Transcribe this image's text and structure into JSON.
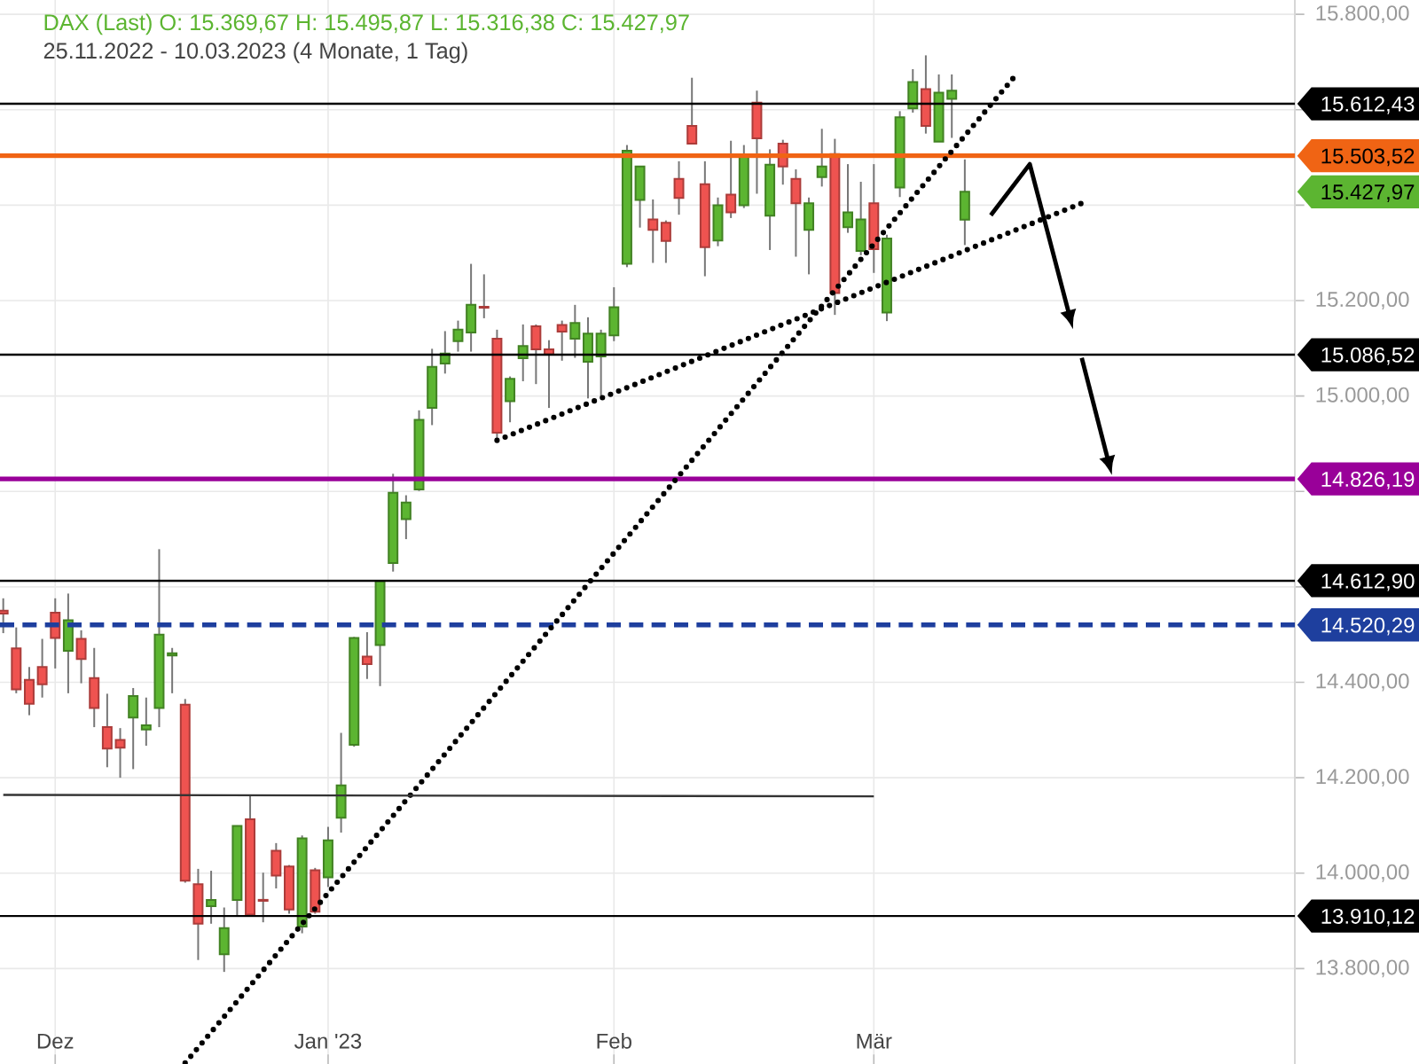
{
  "chart_data": {
    "type": "candlestick",
    "title": "DAX (Last) O: 15.369,67 H: 15.495,87 L: 15.316,38 C: 15.427,97",
    "subtitle": "25.11.2022 - 10.03.2023 (4 Monate, 1 Tag)",
    "categories": [
      null,
      null,
      null,
      null,
      "Dez",
      null,
      null,
      null,
      null,
      null,
      null,
      null,
      null,
      null,
      null,
      null,
      null,
      null,
      null,
      null,
      null,
      null,
      null,
      null,
      null,
      "Jan '23",
      null,
      null,
      null,
      null,
      null,
      null,
      null,
      null,
      null,
      null,
      null,
      null,
      null,
      null,
      null,
      null,
      null,
      null,
      null,
      null,
      null,
      "Feb",
      null,
      null,
      null,
      null,
      null,
      null,
      null,
      null,
      null,
      null,
      null,
      null,
      null,
      null,
      null,
      null,
      null,
      null,
      null,
      "Mär",
      null,
      null,
      null,
      null,
      null,
      null,
      null,
      null,
      null,
      null,
      null,
      null,
      null,
      null,
      null,
      null,
      null,
      null,
      null,
      null,
      null,
      null,
      null,
      null,
      null,
      null,
      null,
      null,
      null,
      null,
      null,
      null
    ],
    "ohlc": [
      [
        14550,
        14576,
        14503,
        14544
      ],
      [
        14471,
        14515,
        14377,
        14385
      ],
      [
        14405,
        14432,
        14331,
        14355
      ],
      [
        14432,
        14491,
        14368,
        14396
      ],
      [
        14546,
        14576,
        14429,
        14493
      ],
      [
        14466,
        14586,
        14377,
        14530
      ],
      [
        14491,
        14509,
        14398,
        14449
      ],
      [
        14409,
        14472,
        14306,
        14346
      ],
      [
        14306,
        14376,
        14222,
        14261
      ],
      [
        14279,
        14304,
        14200,
        14263
      ],
      [
        14326,
        14388,
        14218,
        14371
      ],
      [
        14301,
        14368,
        14267,
        14310
      ],
      [
        14346,
        14679,
        14306,
        14500
      ],
      [
        14456,
        14472,
        14377,
        14461
      ],
      [
        14353,
        14365,
        13980,
        13984
      ],
      [
        13977,
        14009,
        13818,
        13894
      ],
      [
        13931,
        14005,
        13894,
        13944
      ],
      [
        13830,
        13928,
        13793,
        13885
      ],
      [
        13944,
        14100,
        13912,
        14099
      ],
      [
        14113,
        14164,
        13910,
        13913
      ],
      [
        13944,
        14001,
        13897,
        13942
      ],
      [
        14047,
        14063,
        13968,
        13995
      ],
      [
        14014,
        14017,
        13915,
        13924
      ],
      [
        13888,
        14079,
        13874,
        14073
      ],
      [
        14006,
        14011,
        13915,
        13919
      ],
      [
        13991,
        14097,
        13971,
        14069
      ],
      [
        14116,
        14294,
        14085,
        14184
      ],
      [
        14269,
        14495,
        14265,
        14493
      ],
      [
        14454,
        14505,
        14407,
        14438
      ],
      [
        14478,
        14613,
        14392,
        14612
      ],
      [
        14650,
        14837,
        14632,
        14797
      ],
      [
        14742,
        14792,
        14700,
        14777
      ],
      [
        14804,
        14970,
        14801,
        14950
      ],
      [
        14975,
        15099,
        14939,
        15061
      ],
      [
        15068,
        15136,
        15047,
        15089
      ],
      [
        15115,
        15158,
        15093,
        15139
      ],
      [
        15133,
        15277,
        15093,
        15191
      ],
      [
        15187,
        15255,
        15163,
        15185
      ],
      [
        15120,
        15139,
        14908,
        14923
      ],
      [
        14989,
        15041,
        14945,
        15036
      ],
      [
        15079,
        15150,
        15031,
        15105
      ],
      [
        15146,
        15150,
        15025,
        15098
      ],
      [
        15098,
        15117,
        14975,
        15087
      ],
      [
        15149,
        15158,
        15074,
        15135
      ],
      [
        15120,
        15191,
        15080,
        15153
      ],
      [
        15072,
        15165,
        14995,
        15131
      ],
      [
        15083,
        15139,
        15000,
        15131
      ],
      [
        15127,
        15228,
        15115,
        15186
      ],
      [
        15277,
        15526,
        15270,
        15514
      ],
      [
        15411,
        15481,
        15353,
        15481
      ],
      [
        15370,
        15412,
        15279,
        15348
      ],
      [
        15363,
        15368,
        15279,
        15325
      ],
      [
        15455,
        15492,
        15380,
        15415
      ],
      [
        15566,
        15667,
        15529,
        15529
      ],
      [
        15444,
        15492,
        15251,
        15312
      ],
      [
        15326,
        15416,
        15314,
        15400
      ],
      [
        15422,
        15535,
        15373,
        15385
      ],
      [
        15400,
        15526,
        15394,
        15504
      ],
      [
        15615,
        15640,
        15424,
        15540
      ],
      [
        15378,
        15517,
        15306,
        15485
      ],
      [
        15529,
        15537,
        15443,
        15481
      ],
      [
        15455,
        15475,
        15292,
        15404
      ],
      [
        15348,
        15416,
        15255,
        15404
      ],
      [
        15459,
        15560,
        15439,
        15481
      ],
      [
        15507,
        15539,
        15170,
        15216
      ],
      [
        15354,
        15486,
        15342,
        15385
      ],
      [
        15304,
        15449,
        15295,
        15370
      ],
      [
        15404,
        15486,
        15258,
        15308
      ],
      [
        15175,
        15338,
        15157,
        15330
      ],
      [
        15437,
        15597,
        15417,
        15584
      ],
      [
        15603,
        15685,
        15594,
        15658
      ],
      [
        15643,
        15714,
        15550,
        15566
      ],
      [
        15533,
        15674,
        15533,
        15636
      ],
      [
        15623,
        15674,
        15541,
        15640
      ],
      [
        15369.67,
        15495.87,
        15316.38,
        15427.97
      ],
      null,
      null,
      null,
      null,
      null,
      null,
      null,
      null,
      null,
      null,
      null,
      null,
      null,
      null,
      null,
      null,
      null,
      null,
      null,
      null,
      null,
      null,
      null,
      null,
      null
    ],
    "colors": [
      "#ef5350",
      "#ef5350",
      "#ef5350",
      "#ef5350",
      "#ef5350",
      "#5cb531",
      "#ef5350",
      "#ef5350",
      "#ef5350",
      "#ef5350",
      "#5cb531",
      "#5cb531",
      "#5cb531",
      "#5cb531",
      "#ef5350",
      "#ef5350",
      "#5cb531",
      "#5cb531",
      "#5cb531",
      "#ef5350",
      "#ef5350",
      "#ef5350",
      "#ef5350",
      "#5cb531",
      "#ef5350",
      "#5cb531",
      "#5cb531",
      "#5cb531",
      "#ef5350",
      "#5cb531",
      "#5cb531",
      "#5cb531",
      "#5cb531",
      "#5cb531",
      "#5cb531",
      "#5cb531",
      "#5cb531",
      "#ef5350",
      "#ef5350",
      "#5cb531",
      "#5cb531",
      "#ef5350",
      "#ef5350",
      "#ef5350",
      "#5cb531",
      "#5cb531",
      "#5cb531",
      "#5cb531",
      "#5cb531",
      "#5cb531",
      "#ef5350",
      "#ef5350",
      "#ef5350",
      "#ef5350",
      "#ef5350",
      "#5cb531",
      "#ef5350",
      "#5cb531",
      "#ef5350",
      "#5cb531",
      "#ef5350",
      "#ef5350",
      "#5cb531",
      "#5cb531",
      "#ef5350",
      "#5cb531",
      "#5cb531",
      "#ef5350",
      "#5cb531",
      "#5cb531",
      "#5cb531",
      "#ef5350",
      "#5cb531",
      "#5cb531",
      "#5cb531",
      null,
      null,
      null,
      null,
      null,
      null,
      null,
      null,
      null,
      null,
      null,
      null,
      null,
      null,
      null,
      null,
      null,
      null,
      null,
      null,
      null,
      null,
      null,
      null,
      null
    ],
    "ylim": [
      13600,
      15830
    ],
    "yticks": [
      {
        "value": 13800,
        "label": "13.800,00"
      },
      {
        "value": 14000,
        "label": "14.000,00"
      },
      {
        "value": 14200,
        "label": "14.200,00"
      },
      {
        "value": 14400,
        "label": "14.400,00"
      },
      {
        "value": 14600,
        "label": null
      },
      {
        "value": 14800,
        "label": null
      },
      {
        "value": 15000,
        "label": "15.000,00"
      },
      {
        "value": 15200,
        "label": "15.200,00"
      },
      {
        "value": 15400,
        "label": null
      },
      {
        "value": 15600,
        "label": null
      },
      {
        "value": 15800,
        "label": "15.800,00"
      }
    ],
    "grid": true,
    "ref_lines": [
      {
        "axis": "y",
        "value": 15612.43,
        "label": "15.612,43",
        "color": "#000000"
      },
      {
        "axis": "y",
        "value": 15503.52,
        "label": "15.503,52",
        "color": "#f06414"
      },
      {
        "axis": "y",
        "value": 15086.52,
        "label": "15.086,52",
        "color": "#000000"
      },
      {
        "axis": "y",
        "value": 14826.19,
        "label": "14.826,19",
        "color": "#990099"
      },
      {
        "axis": "y",
        "value": 14612.9,
        "label": "14.612,90",
        "color": "#000000"
      },
      {
        "axis": "y",
        "value": 14520.29,
        "label": "14.520,29",
        "color": "#1e3f9e",
        "line_style": "dashed"
      },
      {
        "axis": "y",
        "value": 13910.12,
        "label": "13.910,12",
        "color": "#000000"
      }
    ],
    "annotations": [
      "15.427,97"
    ],
    "series": [
      {
        "type": "line",
        "color": "#000000",
        "line_style": "dotted",
        "values": [
          null,
          null,
          null,
          null,
          null,
          null,
          null,
          null,
          null,
          null,
          null,
          null,
          null,
          null,
          13602,
          null,
          null,
          null,
          null,
          null,
          null,
          null,
          null,
          null,
          null,
          null,
          null,
          null,
          null,
          null,
          null,
          null,
          null,
          null,
          null,
          null,
          null,
          null,
          null,
          null,
          null,
          null,
          null,
          null,
          null,
          null,
          null,
          null,
          null,
          null,
          null,
          null,
          null,
          null,
          null,
          null,
          null,
          null,
          null,
          null,
          null,
          null,
          null,
          null,
          null,
          null,
          null,
          null,
          null,
          null,
          null,
          null,
          null,
          null,
          null,
          null,
          null,
          null,
          15675,
          null,
          null,
          null,
          null,
          null,
          null,
          null,
          null,
          null,
          null,
          null,
          null,
          null,
          null,
          null,
          null,
          null,
          null,
          null,
          null,
          null
        ]
      },
      {
        "type": "line",
        "color": "#000000",
        "line_style": "dotted",
        "values": [
          null,
          null,
          null,
          null,
          null,
          null,
          null,
          null,
          null,
          null,
          null,
          null,
          null,
          null,
          null,
          null,
          null,
          null,
          null,
          null,
          null,
          null,
          null,
          null,
          null,
          null,
          null,
          null,
          null,
          null,
          null,
          null,
          null,
          null,
          null,
          null,
          null,
          null,
          14907,
          null,
          null,
          null,
          null,
          null,
          null,
          null,
          null,
          null,
          null,
          null,
          null,
          null,
          null,
          null,
          null,
          null,
          null,
          null,
          null,
          null,
          null,
          null,
          null,
          null,
          null,
          null,
          null,
          null,
          null,
          null,
          null,
          null,
          null,
          null,
          null,
          null,
          null,
          null,
          null,
          null,
          null,
          null,
          null,
          15404,
          null,
          null,
          null,
          null,
          null,
          null,
          null,
          null,
          null,
          null,
          null,
          null,
          null,
          null,
          null,
          null
        ]
      },
      {
        "type": "line",
        "color": "#333333",
        "values": [
          14164,
          null,
          null,
          null,
          null,
          null,
          null,
          null,
          null,
          null,
          null,
          null,
          null,
          null,
          null,
          null,
          null,
          null,
          null,
          null,
          null,
          null,
          null,
          null,
          null,
          null,
          null,
          null,
          null,
          null,
          null,
          null,
          null,
          null,
          null,
          null,
          null,
          null,
          null,
          null,
          null,
          null,
          null,
          null,
          null,
          null,
          null,
          null,
          null,
          null,
          null,
          null,
          null,
          null,
          null,
          null,
          null,
          null,
          null,
          null,
          null,
          null,
          null,
          null,
          null,
          null,
          null,
          14161,
          null,
          null,
          null,
          null,
          null,
          null,
          null,
          null,
          null,
          null,
          null,
          null,
          null,
          null,
          null,
          null,
          null,
          null,
          null,
          null,
          null,
          null,
          null,
          null,
          null,
          null,
          null,
          null,
          null,
          null,
          null,
          null
        ]
      },
      {
        "type": "line",
        "color": "#000000",
        "line_style": "solid",
        "values": [
          null,
          null,
          null,
          null,
          null,
          null,
          null,
          null,
          null,
          null,
          null,
          null,
          null,
          null,
          null,
          null,
          null,
          null,
          null,
          null,
          null,
          null,
          null,
          null,
          null,
          null,
          null,
          null,
          null,
          null,
          null,
          null,
          null,
          null,
          null,
          null,
          null,
          null,
          null,
          null,
          null,
          null,
          null,
          null,
          null,
          null,
          null,
          null,
          null,
          null,
          null,
          null,
          null,
          null,
          null,
          null,
          null,
          null,
          null,
          null,
          null,
          null,
          null,
          null,
          null,
          null,
          null,
          null,
          null,
          null,
          null,
          null,
          null,
          null,
          null,
          null,
          15379,
          null,
          null,
          15486,
          null,
          null,
          15174,
          null,
          null,
          null,
          null,
          null,
          null,
          null,
          null,
          null,
          null,
          null,
          null,
          null,
          null,
          null,
          null,
          null
        ]
      },
      {
        "type": "line",
        "color": "#000000",
        "line_style": "solid",
        "values": [
          null,
          null,
          null,
          null,
          null,
          null,
          null,
          null,
          null,
          null,
          null,
          null,
          null,
          null,
          null,
          null,
          null,
          null,
          null,
          null,
          null,
          null,
          null,
          null,
          null,
          null,
          null,
          null,
          null,
          null,
          null,
          null,
          null,
          null,
          null,
          null,
          null,
          null,
          null,
          null,
          null,
          null,
          null,
          null,
          null,
          null,
          null,
          null,
          null,
          null,
          null,
          null,
          null,
          null,
          null,
          null,
          null,
          null,
          null,
          null,
          null,
          null,
          null,
          null,
          null,
          null,
          null,
          null,
          null,
          null,
          null,
          null,
          null,
          null,
          null,
          null,
          null,
          null,
          null,
          null,
          null,
          null,
          null,
          15080,
          null,
          14868,
          null,
          null,
          null,
          null,
          null,
          null,
          null,
          null,
          null,
          null,
          null,
          null,
          null,
          null
        ]
      }
    ]
  }
}
